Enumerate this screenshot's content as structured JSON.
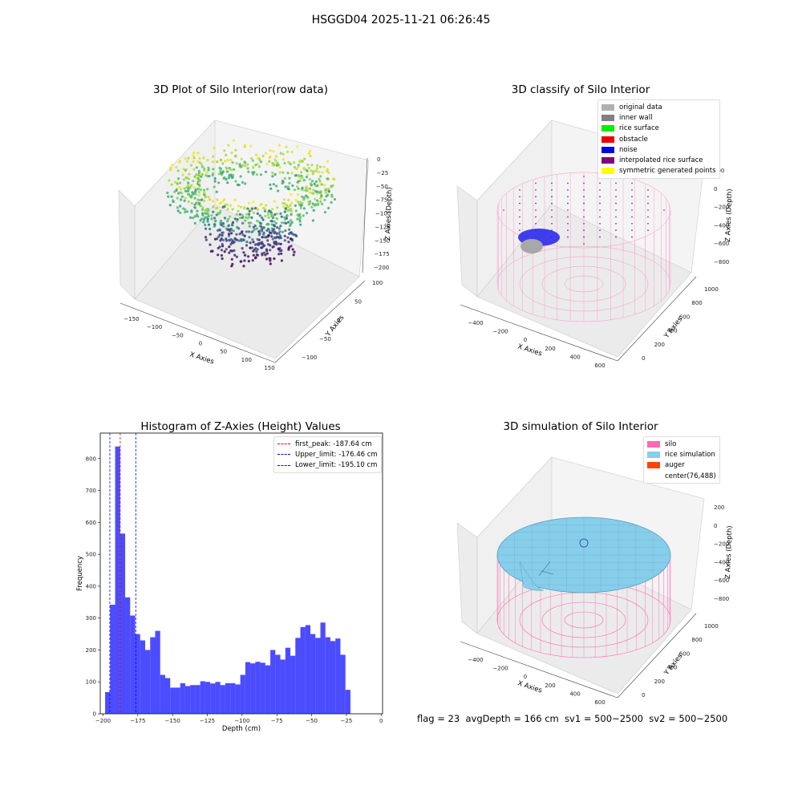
{
  "figure": {
    "suptitle": "HSGGD04 2025-11-21 06:26:45",
    "footer": "flag = 23  avgDepth = 166 cm  sv1 = 500~2500  sv2 = 500~2500"
  },
  "panels": {
    "raw": {
      "title": "3D Plot of Silo Interior(row data)",
      "xlabel": "X Axies",
      "ylabel": "Y Axies",
      "zlabel": "Z Axies (Depth)",
      "xticks": [
        "−150",
        "−100",
        "−50",
        "0",
        "50",
        "100",
        "150"
      ],
      "yticks": [
        "100",
        "50",
        "0",
        "−50",
        "−100"
      ],
      "zticks": [
        "0",
        "−25",
        "−50",
        "−75",
        "−100",
        "−125",
        "−150",
        "−175",
        "−200"
      ]
    },
    "classify": {
      "title": "3D classify of Silo Interior",
      "xlabel": "X Axies",
      "ylabel": "Y Axies",
      "zlabel": "Z Axies (Depth)",
      "xticks": [
        "−400",
        "−200",
        "0",
        "200",
        "400",
        "600"
      ],
      "yticks": [
        "1000",
        "800",
        "600",
        "400",
        "200",
        "0"
      ],
      "zticks": [
        "200",
        "0",
        "−200",
        "−400",
        "−600",
        "−800"
      ],
      "legend": [
        {
          "label": "original data",
          "color": "#b0b0b0"
        },
        {
          "label": "inner wall",
          "color": "#808080"
        },
        {
          "label": "rice surface",
          "color": "#00ee00"
        },
        {
          "label": "obstacle",
          "color": "#ee0000"
        },
        {
          "label": "noise",
          "color": "#0000ee"
        },
        {
          "label": "interpolated rice surface",
          "color": "#800080"
        },
        {
          "label": "symmetric generated points",
          "color": "#ffff00"
        }
      ]
    },
    "simulation": {
      "title": "3D simulation of Silo Interior",
      "xlabel": "X Axies",
      "ylabel": "Y Axies",
      "zlabel": "Z Axies (Depth)",
      "xticks": [
        "−400",
        "−200",
        "0",
        "200",
        "400",
        "600"
      ],
      "yticks": [
        "1000",
        "800",
        "600",
        "400",
        "200",
        "0"
      ],
      "zticks": [
        "200",
        "0",
        "−200",
        "−400",
        "−600",
        "−800"
      ],
      "legend": [
        {
          "label": "silo",
          "color": "#ff69b4"
        },
        {
          "label": "rice simulation",
          "color": "#87ceeb"
        },
        {
          "label": "auger",
          "color": "#ff4500"
        },
        {
          "label": "center(76,488)",
          "color": ""
        }
      ]
    }
  },
  "chart_data": [
    {
      "type": "bar",
      "title": "Histogram of Z-Axies (Height) Values",
      "xlabel": "Depth (cm)",
      "ylabel": "Frequency",
      "xlim": [
        -202,
        1
      ],
      "ylim": [
        0,
        880
      ],
      "xticks": [
        -200,
        -175,
        -150,
        -125,
        -100,
        -75,
        -50,
        -25,
        0
      ],
      "yticks": [
        0,
        100,
        200,
        300,
        400,
        500,
        600,
        700,
        800
      ],
      "bar_color": "#0000ff",
      "bin_width": 3.6,
      "bin_start": -198.5,
      "values": [
        68,
        342,
        838,
        565,
        365,
        308,
        250,
        230,
        200,
        240,
        260,
        122,
        112,
        82,
        82,
        96,
        87,
        90,
        90,
        102,
        100,
        95,
        100,
        90,
        96,
        96,
        92,
        122,
        162,
        158,
        163,
        160,
        152,
        200,
        185,
        170,
        207,
        182,
        238,
        272,
        278,
        250,
        238,
        286,
        240,
        228,
        236,
        185,
        75
      ],
      "vlines": [
        {
          "label": "first_peak: -187.64 cm",
          "x": -187.64,
          "color": "#ff0000"
        },
        {
          "label": "Upper_limit: -176.46 cm",
          "x": -176.46,
          "color": "#0000ff"
        },
        {
          "label": "Lower_limit: -195.10 cm",
          "x": -195.1,
          "color": "#0000ff"
        }
      ],
      "legend_position": "top-right"
    }
  ]
}
